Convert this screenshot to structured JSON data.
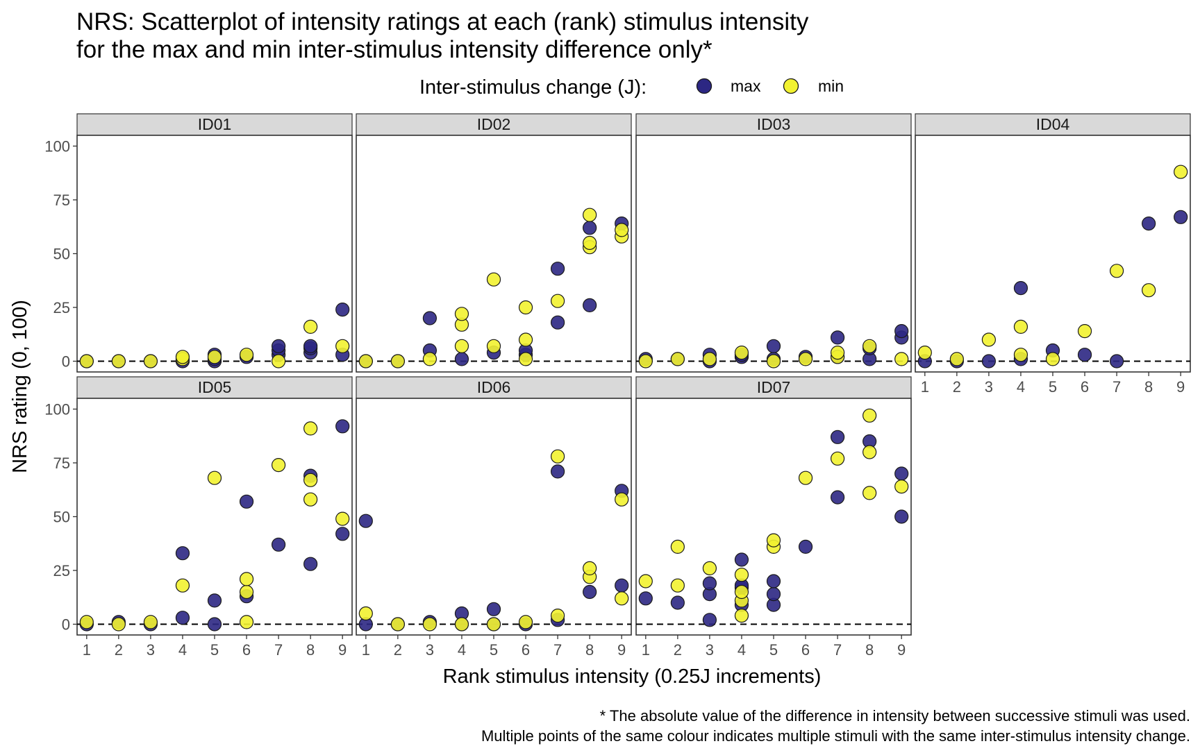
{
  "chart_data": {
    "type": "scatter",
    "title_lines": [
      "NRS: Scatterplot of intensity ratings at each (rank) stimulus intensity",
      "for the max and min inter-stimulus intensity difference only*"
    ],
    "xlabel": "Rank stimulus intensity (0.25J increments)",
    "ylabel": "NRS rating (0, 100)",
    "x_ticks": [
      "1",
      "2",
      "3",
      "4",
      "5",
      "6",
      "7",
      "8",
      "9"
    ],
    "y_ticks": [
      "0",
      "25",
      "50",
      "75",
      "100"
    ],
    "xlim": [
      0.7,
      9.3
    ],
    "ylim": [
      -5,
      105
    ],
    "reference_line": {
      "y": 0,
      "style": "dashed"
    },
    "grid": false,
    "legend": {
      "title": "Inter-stimulus change (J):",
      "placement": "top",
      "items": [
        {
          "label": "max",
          "color": "#2c2783"
        },
        {
          "label": "min",
          "color": "#f2f230"
        }
      ]
    },
    "caption_lines": [
      "* The absolute value of the difference in intensity between successive stimuli was used.",
      "Multiple points of the same colour indicates multiple stimuli with the same inter-stimulus intensity change."
    ],
    "panels": [
      {
        "label": "ID01",
        "series": [
          {
            "name": "max",
            "points": [
              [
                1,
                0
              ],
              [
                2,
                0
              ],
              [
                3,
                0
              ],
              [
                4,
                0
              ],
              [
                5,
                0
              ],
              [
                5,
                1
              ],
              [
                5,
                3
              ],
              [
                6,
                2
              ],
              [
                7,
                3
              ],
              [
                7,
                5
              ],
              [
                7,
                7
              ],
              [
                8,
                4
              ],
              [
                8,
                6
              ],
              [
                8,
                7
              ],
              [
                9,
                3
              ],
              [
                9,
                24
              ]
            ]
          },
          {
            "name": "min",
            "points": [
              [
                1,
                0
              ],
              [
                2,
                0
              ],
              [
                3,
                0
              ],
              [
                4,
                1
              ],
              [
                4,
                2
              ],
              [
                5,
                2
              ],
              [
                6,
                3
              ],
              [
                7,
                0
              ],
              [
                8,
                16
              ],
              [
                9,
                7
              ]
            ]
          }
        ]
      },
      {
        "label": "ID02",
        "series": [
          {
            "name": "max",
            "points": [
              [
                1,
                0
              ],
              [
                2,
                0
              ],
              [
                3,
                5
              ],
              [
                3,
                20
              ],
              [
                4,
                1
              ],
              [
                5,
                4
              ],
              [
                6,
                3
              ],
              [
                6,
                5
              ],
              [
                7,
                18
              ],
              [
                7,
                43
              ],
              [
                8,
                26
              ],
              [
                8,
                62
              ],
              [
                9,
                64
              ]
            ]
          },
          {
            "name": "min",
            "points": [
              [
                1,
                0
              ],
              [
                2,
                0
              ],
              [
                3,
                1
              ],
              [
                4,
                7
              ],
              [
                4,
                17
              ],
              [
                4,
                22
              ],
              [
                5,
                7
              ],
              [
                5,
                38
              ],
              [
                6,
                1
              ],
              [
                6,
                10
              ],
              [
                6,
                25
              ],
              [
                7,
                28
              ],
              [
                8,
                53
              ],
              [
                8,
                55
              ],
              [
                8,
                68
              ],
              [
                9,
                58
              ],
              [
                9,
                61
              ]
            ]
          }
        ]
      },
      {
        "label": "ID03",
        "series": [
          {
            "name": "max",
            "points": [
              [
                1,
                1
              ],
              [
                2,
                1
              ],
              [
                3,
                0
              ],
              [
                3,
                3
              ],
              [
                4,
                2
              ],
              [
                4,
                3
              ],
              [
                5,
                1
              ],
              [
                5,
                7
              ],
              [
                6,
                2
              ],
              [
                7,
                2
              ],
              [
                7,
                11
              ],
              [
                8,
                1
              ],
              [
                8,
                6
              ],
              [
                9,
                11
              ],
              [
                9,
                14
              ]
            ]
          },
          {
            "name": "min",
            "points": [
              [
                1,
                0
              ],
              [
                2,
                1
              ],
              [
                3,
                1
              ],
              [
                4,
                4
              ],
              [
                5,
                0
              ],
              [
                6,
                1
              ],
              [
                7,
                2
              ],
              [
                7,
                4
              ],
              [
                8,
                7
              ],
              [
                9,
                1
              ]
            ]
          }
        ]
      },
      {
        "label": "ID04",
        "series": [
          {
            "name": "max",
            "points": [
              [
                1,
                0
              ],
              [
                2,
                0
              ],
              [
                3,
                0
              ],
              [
                4,
                1
              ],
              [
                4,
                34
              ],
              [
                5,
                5
              ],
              [
                6,
                3
              ],
              [
                7,
                0
              ],
              [
                8,
                64
              ],
              [
                9,
                67
              ]
            ]
          },
          {
            "name": "min",
            "points": [
              [
                1,
                4
              ],
              [
                2,
                1
              ],
              [
                3,
                10
              ],
              [
                4,
                3
              ],
              [
                4,
                16
              ],
              [
                5,
                1
              ],
              [
                6,
                14
              ],
              [
                7,
                42
              ],
              [
                8,
                33
              ],
              [
                9,
                88
              ]
            ]
          }
        ]
      },
      {
        "label": "ID05",
        "series": [
          {
            "name": "max",
            "points": [
              [
                1,
                0
              ],
              [
                2,
                1
              ],
              [
                3,
                0
              ],
              [
                4,
                3
              ],
              [
                4,
                33
              ],
              [
                5,
                0
              ],
              [
                5,
                11
              ],
              [
                6,
                13
              ],
              [
                6,
                57
              ],
              [
                7,
                37
              ],
              [
                8,
                28
              ],
              [
                8,
                69
              ],
              [
                9,
                42
              ],
              [
                9,
                92
              ]
            ]
          },
          {
            "name": "min",
            "points": [
              [
                1,
                1
              ],
              [
                2,
                0
              ],
              [
                3,
                1
              ],
              [
                4,
                18
              ],
              [
                5,
                68
              ],
              [
                6,
                1
              ],
              [
                6,
                15
              ],
              [
                6,
                21
              ],
              [
                7,
                74
              ],
              [
                8,
                58
              ],
              [
                8,
                67
              ],
              [
                8,
                91
              ],
              [
                9,
                49
              ]
            ]
          }
        ]
      },
      {
        "label": "ID06",
        "series": [
          {
            "name": "max",
            "points": [
              [
                1,
                0
              ],
              [
                1,
                48
              ],
              [
                2,
                0
              ],
              [
                3,
                1
              ],
              [
                4,
                0
              ],
              [
                4,
                5
              ],
              [
                5,
                0
              ],
              [
                5,
                7
              ],
              [
                6,
                0
              ],
              [
                7,
                2
              ],
              [
                7,
                71
              ],
              [
                8,
                15
              ],
              [
                9,
                18
              ],
              [
                9,
                62
              ]
            ]
          },
          {
            "name": "min",
            "points": [
              [
                1,
                5
              ],
              [
                2,
                0
              ],
              [
                3,
                0
              ],
              [
                4,
                0
              ],
              [
                5,
                0
              ],
              [
                6,
                1
              ],
              [
                7,
                4
              ],
              [
                7,
                78
              ],
              [
                8,
                22
              ],
              [
                8,
                26
              ],
              [
                9,
                12
              ],
              [
                9,
                58
              ]
            ]
          }
        ]
      },
      {
        "label": "ID07",
        "series": [
          {
            "name": "max",
            "points": [
              [
                1,
                12
              ],
              [
                2,
                10
              ],
              [
                3,
                2
              ],
              [
                3,
                14
              ],
              [
                3,
                19
              ],
              [
                4,
                9
              ],
              [
                4,
                17
              ],
              [
                4,
                18
              ],
              [
                4,
                30
              ],
              [
                5,
                9
              ],
              [
                5,
                14
              ],
              [
                5,
                20
              ],
              [
                6,
                36
              ],
              [
                7,
                59
              ],
              [
                7,
                87
              ],
              [
                8,
                85
              ],
              [
                9,
                50
              ],
              [
                9,
                70
              ]
            ]
          },
          {
            "name": "min",
            "points": [
              [
                1,
                20
              ],
              [
                2,
                18
              ],
              [
                2,
                36
              ],
              [
                3,
                26
              ],
              [
                4,
                4
              ],
              [
                4,
                11
              ],
              [
                4,
                15
              ],
              [
                4,
                23
              ],
              [
                5,
                36
              ],
              [
                5,
                39
              ],
              [
                6,
                68
              ],
              [
                7,
                77
              ],
              [
                8,
                61
              ],
              [
                8,
                80
              ],
              [
                8,
                97
              ],
              [
                9,
                64
              ]
            ]
          }
        ]
      }
    ]
  }
}
